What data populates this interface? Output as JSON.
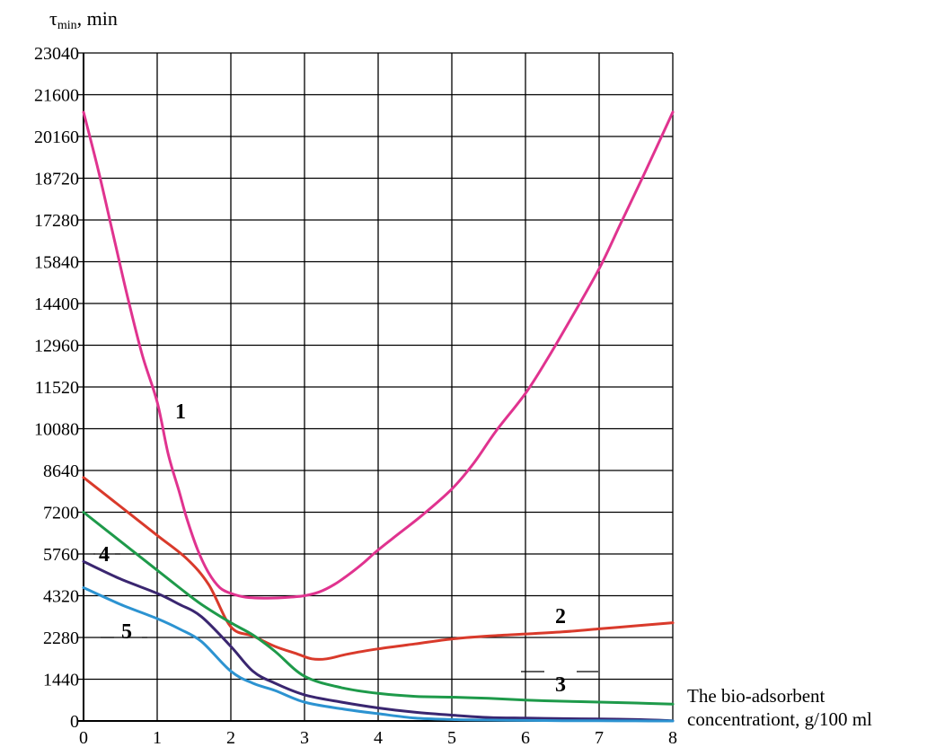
{
  "chart_data": {
    "type": "line",
    "ylabel_main": "τ",
    "ylabel_sub": "min",
    "ylabel_unit": ", min",
    "xlabel_line1": "The bio-adsorbent",
    "xlabel_line2": "concentrationt, g/100 ml",
    "xlim": [
      0,
      8
    ],
    "x_ticks": [
      "0",
      "1",
      "2",
      "3",
      "4",
      "5",
      "6",
      "7",
      "8"
    ],
    "y_ticks": [
      "0",
      "1440",
      "2280",
      "4320",
      "5760",
      "7200",
      "8640",
      "10080",
      "11520",
      "12960",
      "14400",
      "15840",
      "17280",
      "18720",
      "20160",
      "21600",
      "23040"
    ],
    "grid": true,
    "colors": {
      "1": "#e0338f",
      "2": "#d93a2b",
      "3": "#1e9a4a",
      "4": "#3a2670",
      "5": "#2c93d1"
    },
    "series": [
      {
        "name": "1",
        "x": [
          0,
          0.2,
          0.4,
          0.6,
          0.8,
          1.0,
          1.15,
          1.3,
          1.4,
          1.55,
          1.7,
          1.85,
          2.0,
          2.2,
          2.5,
          2.8,
          3.0,
          3.2,
          3.4,
          3.6,
          3.8,
          4.0,
          4.3,
          4.6,
          5.0,
          5.3,
          5.6,
          6.0,
          6.3,
          6.6,
          7.0,
          7.3,
          7.6,
          8.0
        ],
        "y": [
          21000,
          19000,
          16800,
          14600,
          12600,
          11000,
          9200,
          7900,
          7000,
          5900,
          5100,
          4600,
          4400,
          4250,
          4200,
          4250,
          4320,
          4450,
          4700,
          5050,
          5450,
          5900,
          6500,
          7100,
          8000,
          8900,
          10000,
          11300,
          12500,
          13800,
          15600,
          17200,
          18800,
          21000
        ]
      },
      {
        "name": "2",
        "x": [
          0,
          0.5,
          1.0,
          1.4,
          1.7,
          2.0,
          2.3,
          2.6,
          2.9,
          3.1,
          3.3,
          3.6,
          4.0,
          4.5,
          5.0,
          5.5,
          6.0,
          6.5,
          7.0,
          7.5,
          8.0
        ],
        "y": [
          8400,
          7400,
          6400,
          5600,
          4700,
          2800,
          2350,
          2100,
          1950,
          1850,
          1850,
          1950,
          2050,
          2150,
          2250,
          2350,
          2450,
          2550,
          2700,
          2850,
          3000
        ]
      },
      {
        "name": "3",
        "x": [
          0,
          0.5,
          1.0,
          1.3,
          1.6,
          2.0,
          2.3,
          2.6,
          3.0,
          3.5,
          4.0,
          4.5,
          5.0,
          5.5,
          6.0,
          6.5,
          7.0,
          7.5,
          8.0
        ],
        "y": [
          7200,
          6200,
          5200,
          4600,
          3900,
          3000,
          2400,
          2000,
          1500,
          1150,
          950,
          850,
          820,
          780,
          720,
          680,
          650,
          620,
          580
        ]
      },
      {
        "name": "4",
        "x": [
          0,
          0.5,
          1.0,
          1.3,
          1.6,
          2.0,
          2.3,
          2.6,
          3.0,
          3.5,
          4.0,
          4.5,
          5.0,
          5.5,
          6.0,
          6.5,
          7.0,
          7.5,
          8.0
        ],
        "y": [
          5500,
          4900,
          4400,
          3900,
          3300,
          2100,
          1600,
          1300,
          900,
          650,
          450,
          300,
          200,
          120,
          100,
          80,
          70,
          50,
          10
        ]
      },
      {
        "name": "5",
        "x": [
          0,
          0.5,
          1.0,
          1.3,
          1.6,
          2.0,
          2.3,
          2.6,
          3.0,
          3.5,
          4.0,
          4.5,
          5.0,
          5.5,
          6.0,
          6.5,
          7.0,
          7.5,
          8.0
        ],
        "y": [
          4600,
          3900,
          3200,
          2700,
          2200,
          1600,
          1300,
          1050,
          650,
          420,
          250,
          100,
          50,
          30,
          20,
          10,
          5,
          2,
          0
        ]
      }
    ]
  }
}
